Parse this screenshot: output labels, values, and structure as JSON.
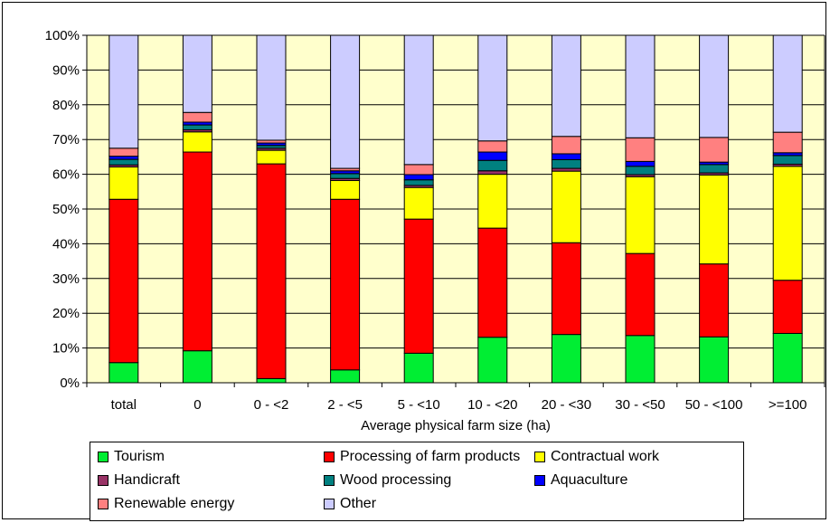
{
  "chart_data": {
    "type": "bar",
    "stacked": true,
    "percent_stacked": true,
    "categories": [
      "total",
      "0",
      "0 - <2",
      "2 - <5",
      "5 - <10",
      "10 - <20",
      "20 - <30",
      "30 - <50",
      "50 - <100",
      ">=100"
    ],
    "xlabel": "Average physical farm size (ha)",
    "ylabel": "",
    "ylim": [
      0,
      100
    ],
    "y_ticks": [
      "0%",
      "10%",
      "20%",
      "30%",
      "40%",
      "50%",
      "60%",
      "70%",
      "80%",
      "90%",
      "100%"
    ],
    "grid": true,
    "legend_position": "bottom",
    "plot_background": "#ffffcc",
    "series": [
      {
        "name": "Tourism",
        "color": "#00ee33",
        "values": [
          5.8,
          9.2,
          1.2,
          3.7,
          8.5,
          13.1,
          13.9,
          13.6,
          13.2,
          14.2
        ]
      },
      {
        "name": "Processing of farm products",
        "color": "#ff0000",
        "values": [
          47.0,
          57.2,
          61.8,
          49.1,
          38.6,
          31.4,
          26.4,
          23.6,
          21.0,
          15.3
        ]
      },
      {
        "name": "Contractual work",
        "color": "#ffff00",
        "values": [
          9.3,
          5.8,
          3.9,
          5.4,
          9.1,
          15.5,
          20.6,
          22.1,
          25.6,
          32.8
        ]
      },
      {
        "name": "Handicraft",
        "color": "#993366",
        "values": [
          0.6,
          0.6,
          0.6,
          0.6,
          0.6,
          1.0,
          0.8,
          0.6,
          0.6,
          0.6
        ]
      },
      {
        "name": "Wood processing",
        "color": "#008080",
        "values": [
          1.6,
          1.4,
          0.8,
          1.4,
          1.6,
          3.0,
          2.5,
          2.4,
          2.4,
          2.5
        ]
      },
      {
        "name": "Aquaculture",
        "color": "#0000ff",
        "values": [
          0.9,
          0.8,
          0.7,
          0.8,
          1.5,
          2.4,
          1.7,
          1.4,
          0.7,
          0.8
        ]
      },
      {
        "name": "Renewable energy",
        "color": "#ff8080",
        "values": [
          2.3,
          2.8,
          0.8,
          0.7,
          2.9,
          3.2,
          5.0,
          6.8,
          7.1,
          5.9
        ]
      },
      {
        "name": "Other",
        "color": "#ccccff",
        "values": [
          32.5,
          22.2,
          30.2,
          38.3,
          37.2,
          30.4,
          29.1,
          29.5,
          29.4,
          27.9
        ]
      }
    ]
  }
}
